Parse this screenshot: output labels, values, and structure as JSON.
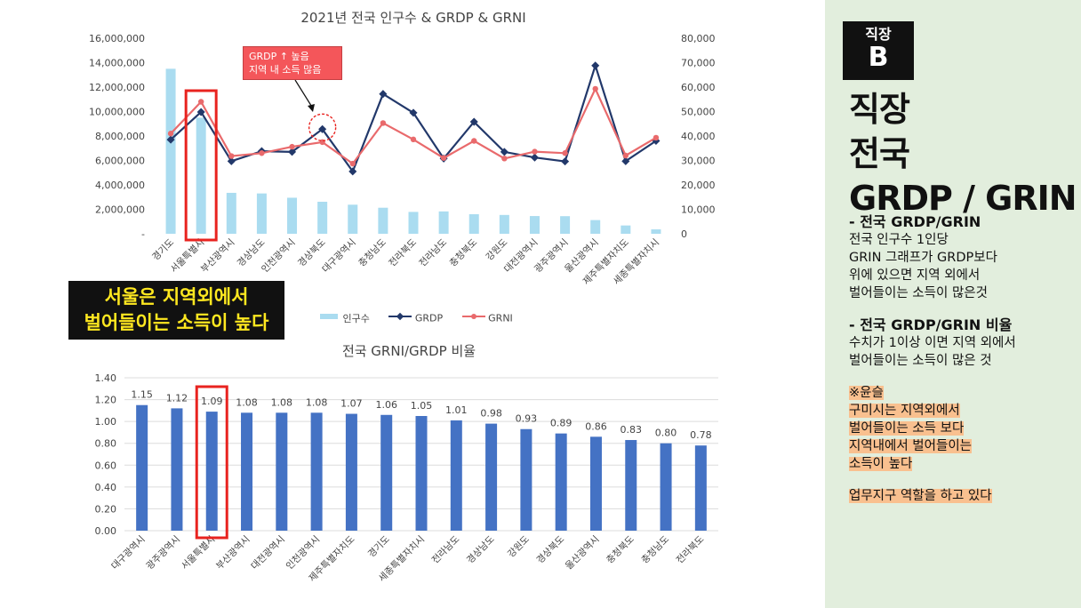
{
  "chart_data": [
    {
      "type": "bar+line",
      "title": "2021년 전국 인구수 & GRDP & GRNI",
      "categories": [
        "경기도",
        "서울특별시",
        "부산광역시",
        "경상남도",
        "인천광역시",
        "경상북도",
        "대구광역시",
        "충청남도",
        "전라북도",
        "전라남도",
        "충청북도",
        "강원도",
        "대전광역시",
        "광주광역시",
        "울산광역시",
        "제주특별자치도",
        "세종특별자치시"
      ],
      "left_axis_ticks": [
        "16,000,000",
        "14,000,000",
        "12,000,000",
        "10,000,000",
        "8,000,000",
        "6,000,000",
        "4,000,000",
        "2,000,000",
        "-"
      ],
      "right_axis_ticks": [
        "80,000",
        "70,000",
        "60,000",
        "50,000",
        "40,000",
        "30,000",
        "20,000",
        "10,000",
        "0"
      ],
      "left_ylim": [
        0,
        16000000
      ],
      "right_ylim": [
        0,
        80000
      ],
      "series": [
        {
          "name": "인구수",
          "type": "bar",
          "axis": "left",
          "color": "#aadcf0",
          "values": [
            13500000,
            9500000,
            3350000,
            3300000,
            2950000,
            2620000,
            2380000,
            2130000,
            1790000,
            1830000,
            1600000,
            1540000,
            1450000,
            1440000,
            1120000,
            680000,
            360000
          ]
        },
        {
          "name": "GRDP",
          "type": "line",
          "axis": "right",
          "color": "#22386a",
          "values": [
            38500,
            49800,
            29700,
            33800,
            33500,
            42800,
            25500,
            57200,
            49500,
            30800,
            45800,
            33500,
            31200,
            29600,
            68800,
            29700,
            38000
          ]
        },
        {
          "name": "GRNI",
          "type": "line",
          "axis": "right",
          "color": "#e96a6c",
          "values": [
            41000,
            54000,
            31800,
            33000,
            35600,
            37500,
            28700,
            45300,
            38600,
            31000,
            38000,
            30800,
            33600,
            33000,
            59300,
            32000,
            39300
          ]
        }
      ],
      "legend": "bottom",
      "grid": false
    },
    {
      "type": "bar",
      "title": "전국 GRNI/GRDP 비율",
      "categories": [
        "대구광역시",
        "광주광역시",
        "서울특별시",
        "부산광역시",
        "대전광역시",
        "인천광역시",
        "제주특별자치도",
        "경기도",
        "세종특별자치시",
        "전라남도",
        "경상남도",
        "강원도",
        "경상북도",
        "울산광역시",
        "충청북도",
        "충청남도",
        "전라북도"
      ],
      "values": [
        1.15,
        1.12,
        1.09,
        1.08,
        1.08,
        1.08,
        1.07,
        1.06,
        1.05,
        1.01,
        0.98,
        0.93,
        0.89,
        0.86,
        0.83,
        0.8,
        0.78
      ],
      "value_labels": [
        "1.15",
        "1.12",
        "1.09",
        "1.08",
        "1.08",
        "1.08",
        "1.07",
        "1.06",
        "1.05",
        "1.01",
        "0.98",
        "0.93",
        "0.89",
        "0.86",
        "0.83",
        "0.80",
        "0.78"
      ],
      "y_ticks": [
        "1.40",
        "1.20",
        "1.00",
        "0.80",
        "0.60",
        "0.40",
        "0.20",
        "0.00"
      ],
      "ylim": [
        0,
        1.4
      ],
      "color": "#4472c4",
      "grid": true
    }
  ],
  "annotations": {
    "callout_line1": "GRDP ↑ 높음",
    "callout_line2": "지역 내 소득 많음",
    "seoul_note_line1": "서울은 지역외에서",
    "seoul_note_line2": "벌어들이는 소득이 높다"
  },
  "legend": {
    "population": "인구수",
    "grdp": "GRDP",
    "grni": "GRNI"
  },
  "sidebar": {
    "tag_small": "직장",
    "tag_big": "B",
    "title_line1": "직장",
    "title_line2": "전국",
    "title_line3": "GRDP / GRIN",
    "sec1_head": "- 전국 GRDP/GRIN",
    "sec1_l1": "전국 인구수 1인당",
    "sec1_l2": "GRIN 그래프가 GRDP보다",
    "sec1_l3": "위에 있으면 지역 외에서",
    "sec1_l4": "벌어들이는 소득이 많은것",
    "sec2_head": "- 전국 GRDP/GRIN 비율",
    "sec2_l1": "수치가 1이상 이면 지역 외에서",
    "sec2_l2": "벌어들이는 소득이 많은 것",
    "note_l1": "※윤슬",
    "note_l2": "구미시는 지역외에서",
    "note_l3": "벌어들이는 소득 보다",
    "note_l4": "지역내에서 벌어들이는",
    "note_l5": "소득이 높다",
    "note_l6": "업무지구 역할을 하고 있다"
  },
  "colors": {
    "highlight_box": "#e8231f",
    "sidebar_bg": "#e2eedd",
    "note_highlight": "#f9c08f"
  }
}
